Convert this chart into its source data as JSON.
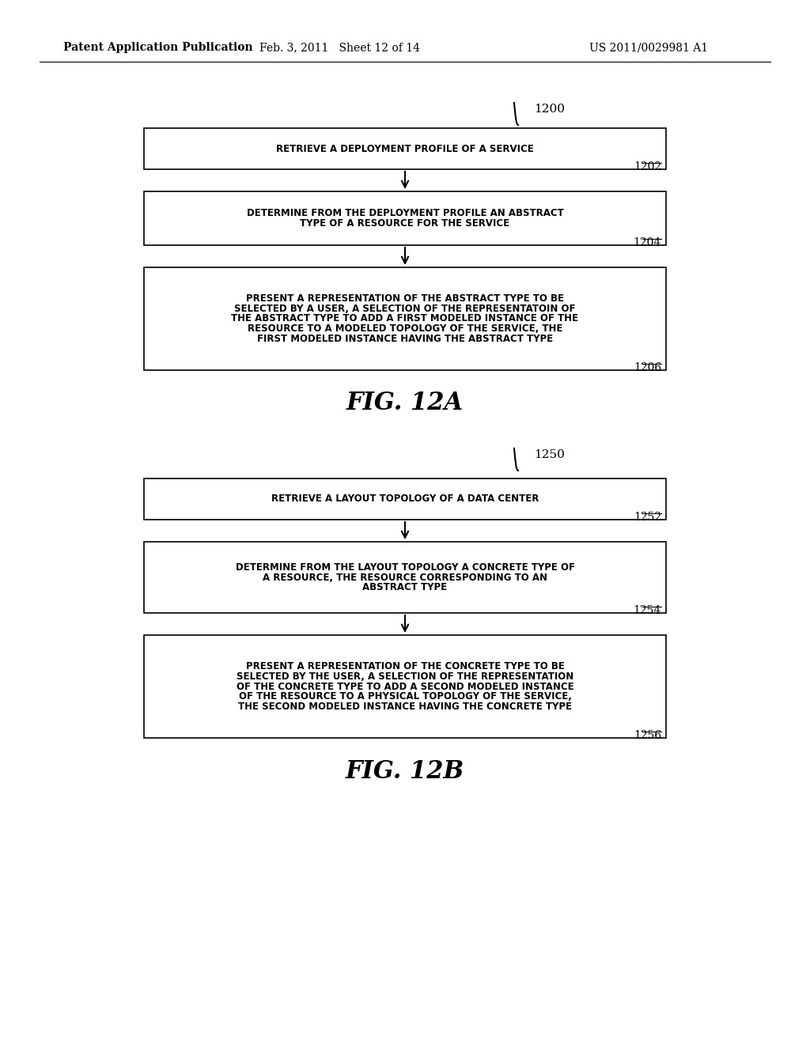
{
  "header_left": "Patent Application Publication",
  "header_mid": "Feb. 3, 2011   Sheet 12 of 14",
  "header_right": "US 2011/0029981 A1",
  "fig_label_a": "FIG. 12A",
  "fig_label_b": "FIG. 12B",
  "diagram_a": {
    "flow_label": "1200",
    "boxes": [
      {
        "id": "1202",
        "lines": [
          "RETRIEVE A DEPLOYMENT PROFILE OF A SERVICE"
        ]
      },
      {
        "id": "1204",
        "lines": [
          "DETERMINE FROM THE DEPLOYMENT PROFILE AN ABSTRACT",
          "TYPE OF A RESOURCE FOR THE SERVICE"
        ]
      },
      {
        "id": "1206",
        "lines": [
          "PRESENT A REPRESENTATION OF THE ABSTRACT TYPE TO BE",
          "SELECTED BY A USER, A SELECTION OF THE REPRESENTATOIN OF",
          "THE ABSTRACT TYPE TO ADD A FIRST MODELED INSTANCE OF THE",
          "RESOURCE TO A MODELED TOPOLOGY OF THE SERVICE, THE",
          "FIRST MODELED INSTANCE HAVING THE ABSTRACT TYPE"
        ]
      }
    ]
  },
  "diagram_b": {
    "flow_label": "1250",
    "boxes": [
      {
        "id": "1252",
        "lines": [
          "RETRIEVE A LAYOUT TOPOLOGY OF A DATA CENTER"
        ]
      },
      {
        "id": "1254",
        "lines": [
          "DETERMINE FROM THE LAYOUT TOPOLOGY A CONCRETE TYPE OF",
          "A RESOURCE, THE RESOURCE CORRESPONDING TO AN",
          "ABSTRACT TYPE"
        ]
      },
      {
        "id": "1256",
        "lines": [
          "PRESENT A REPRESENTATION OF THE CONCRETE TYPE TO BE",
          "SELECTED BY THE USER, A SELECTION OF THE REPRESENTATION",
          "OF THE CONCRETE TYPE TO ADD A SECOND MODELED INSTANCE",
          "OF THE RESOURCE TO A PHYSICAL TOPOLOGY OF THE SERVICE,",
          "THE SECOND MODELED INSTANCE HAVING THE CONCRETE TYPE"
        ]
      }
    ]
  },
  "bg_color": "#ffffff",
  "box_edge_color": "#000000",
  "text_color": "#000000",
  "arrow_color": "#000000",
  "font_size_box": 8.5,
  "font_size_label": 10,
  "font_size_fig": 20,
  "font_size_header": 10
}
